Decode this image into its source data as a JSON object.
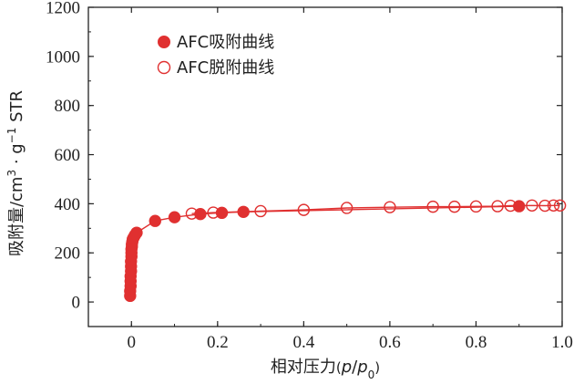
{
  "chart_data": {
    "type": "scatter",
    "xlabel": "相对压力(p/p0)",
    "ylabel": "吸附量/cm3 · g−1 STR",
    "xlim": [
      -0.1,
      1.0
    ],
    "ylim": [
      -100,
      1200
    ],
    "xticks": [
      "0",
      "0.2",
      "0.4",
      "0.6",
      "0.8",
      "1.0"
    ],
    "xtick_values": [
      0,
      0.2,
      0.4,
      0.6,
      0.8,
      1.0
    ],
    "yticks": [
      "0",
      "200",
      "400",
      "600",
      "800",
      "1000",
      "1200"
    ],
    "ytick_values": [
      0,
      200,
      400,
      600,
      800,
      1000,
      1200
    ],
    "legend_position": "top-left",
    "grid": false,
    "color": "#e03030",
    "series": [
      {
        "name": "AFC吸附曲线",
        "marker": "filled-circle",
        "x": [
          -0.003,
          -0.003,
          -0.002,
          -0.002,
          -0.002,
          -0.001,
          -0.001,
          -0.001,
          0.0,
          0.0,
          0.0,
          0.001,
          0.001,
          0.002,
          0.003,
          0.005,
          0.008,
          0.012,
          0.055,
          0.1,
          0.16,
          0.21,
          0.26,
          0.9
        ],
        "y": [
          25,
          45,
          65,
          85,
          105,
          125,
          145,
          165,
          185,
          200,
          215,
          225,
          235,
          245,
          255,
          262,
          272,
          282,
          330,
          345,
          358,
          363,
          367,
          390
        ]
      },
      {
        "name": "AFC脱附曲线",
        "marker": "open-circle",
        "x": [
          0.14,
          0.19,
          0.3,
          0.4,
          0.5,
          0.6,
          0.7,
          0.75,
          0.8,
          0.85,
          0.88,
          0.93,
          0.96,
          0.98,
          0.995
        ],
        "y": [
          360,
          364,
          370,
          375,
          383,
          386,
          388,
          388,
          389,
          390,
          392,
          393,
          392,
          393,
          393
        ]
      }
    ]
  }
}
